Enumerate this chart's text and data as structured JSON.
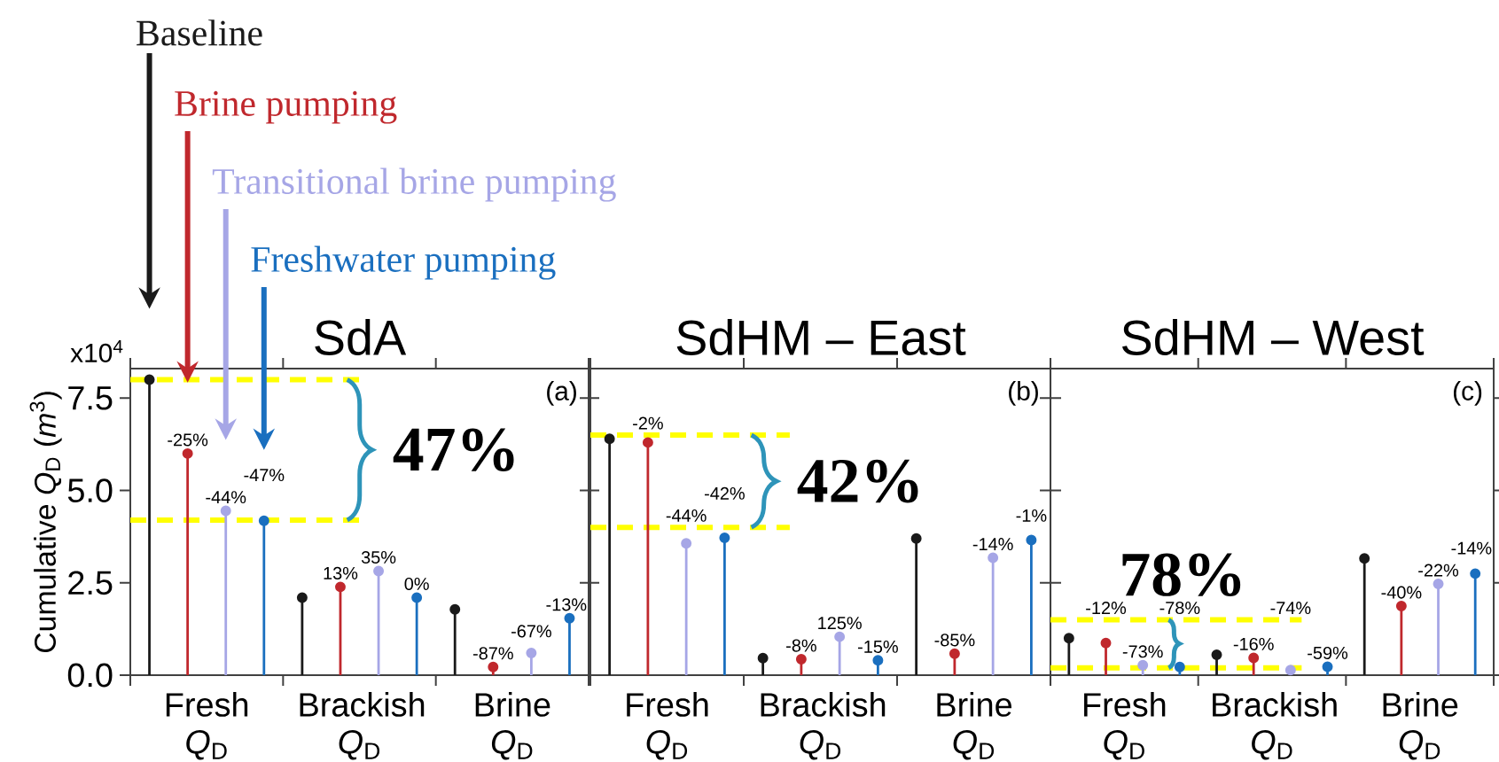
{
  "chart_data": [
    {
      "type": "lollipop",
      "title": "SdA",
      "ylabel": "Cumulative *Q*$_{D}$ (*m*$^{3}$)",
      "categories": [
        "Fresh *Q*$_{D}$",
        "Brackish *Q*$_{D}$",
        "Brine *Q*$_{D}$"
      ],
      "ylim": [
        0,
        8.3
      ],
      "yticks": [
        {
          "value": 0,
          "label": "0.0"
        },
        {
          "value": 2.5,
          "label": "2.5"
        },
        {
          "value": 5,
          "label": "5.0"
        },
        {
          "value": 7.5,
          "label": "7.5"
        }
      ],
      "marker": "circle",
      "series": [
        {
          "name": "Baseline",
          "color": "#1a1a1a",
          "values": [
            8.0,
            2.1,
            1.78
          ]
        },
        {
          "name": "Brine pumping",
          "color": "#c0282d",
          "values": [
            6.0,
            2.39,
            0.22
          ]
        },
        {
          "name": "Transitional brine pumping",
          "color": "#a6a6e6",
          "values": [
            4.45,
            2.82,
            0.6
          ]
        },
        {
          "name": "Freshwater pumping",
          "color": "#1a6fbf",
          "values": [
            4.18,
            2.1,
            1.54
          ]
        }
      ],
      "ref_lines": [
        {
          "axis": "y",
          "value": 8.0,
          "color": "#ffff00",
          "line_style": "dashed"
        },
        {
          "axis": "y",
          "value": 4.2,
          "color": "#ffff00",
          "line_style": "dashed"
        }
      ],
      "annotations": [
        "(a)",
        "47%",
        "-25%",
        "13%",
        "-87%",
        "-44%",
        "35%",
        "-67%",
        "-47%",
        "0%",
        "-13%",
        "x10$^{4}$"
      ]
    },
    {
      "type": "lollipop",
      "title": "SdHM – East",
      "categories": [
        "Fresh *Q*$_{D}$",
        "Brackish *Q*$_{D}$",
        "Brine *Q*$_{D}$"
      ],
      "ylim": [
        0,
        8.3
      ],
      "yticks": [
        {
          "value": 0,
          "label": null
        },
        {
          "value": 2.5,
          "label": null
        },
        {
          "value": 5,
          "label": null
        },
        {
          "value": 7.5,
          "label": null
        }
      ],
      "tick_labels": "x",
      "marker": "circle",
      "series": [
        {
          "color": "#1a1a1a",
          "values": [
            6.4,
            0.46,
            3.7
          ]
        },
        {
          "color": "#c0282d",
          "values": [
            6.3,
            0.43,
            0.58
          ]
        },
        {
          "color": "#a6a6e6",
          "values": [
            3.57,
            1.04,
            3.18
          ]
        },
        {
          "color": "#1a6fbf",
          "values": [
            3.72,
            0.4,
            3.66
          ]
        }
      ],
      "ref_lines": [
        {
          "axis": "y",
          "value": 6.5,
          "color": "#ffff00",
          "line_style": "dashed"
        },
        {
          "axis": "y",
          "value": 4.0,
          "color": "#ffff00",
          "line_style": "dashed"
        }
      ],
      "annotations": [
        "(b)",
        "42%",
        "-2%",
        "-8%",
        "-85%",
        "-44%",
        "125%",
        "-14%",
        "-42%",
        "-15%",
        "-1%"
      ]
    },
    {
      "type": "lollipop",
      "title": "SdHM – West",
      "categories": [
        "Fresh *Q*$_{D}$",
        "Brackish *Q*$_{D}$",
        "Brine *Q*$_{D}$"
      ],
      "ylim": [
        0,
        8.3
      ],
      "yticks": [
        {
          "value": 0,
          "label": null
        },
        {
          "value": 2.5,
          "label": null
        },
        {
          "value": 5,
          "label": null
        },
        {
          "value": 7.5,
          "label": null
        }
      ],
      "tick_labels": "x",
      "marker": "circle",
      "series": [
        {
          "color": "#1a1a1a",
          "values": [
            1.0,
            0.55,
            3.16
          ]
        },
        {
          "color": "#c0282d",
          "values": [
            0.87,
            0.47,
            1.87
          ]
        },
        {
          "color": "#a6a6e6",
          "values": [
            0.27,
            0.14,
            2.47
          ]
        },
        {
          "color": "#1a6fbf",
          "values": [
            0.22,
            0.23,
            2.75
          ]
        }
      ],
      "ref_lines": [
        {
          "axis": "y",
          "value": 1.5,
          "color": "#ffff00",
          "line_style": "dashed"
        },
        {
          "axis": "y",
          "value": 0.2,
          "color": "#ffff00",
          "line_style": "dashed"
        }
      ],
      "annotations": [
        "(c)",
        "78%",
        "-12%",
        "-16%",
        "-40%",
        "-73%",
        "-74%",
        "-22%",
        "-78%",
        "-59%",
        "-14%"
      ]
    }
  ]
}
